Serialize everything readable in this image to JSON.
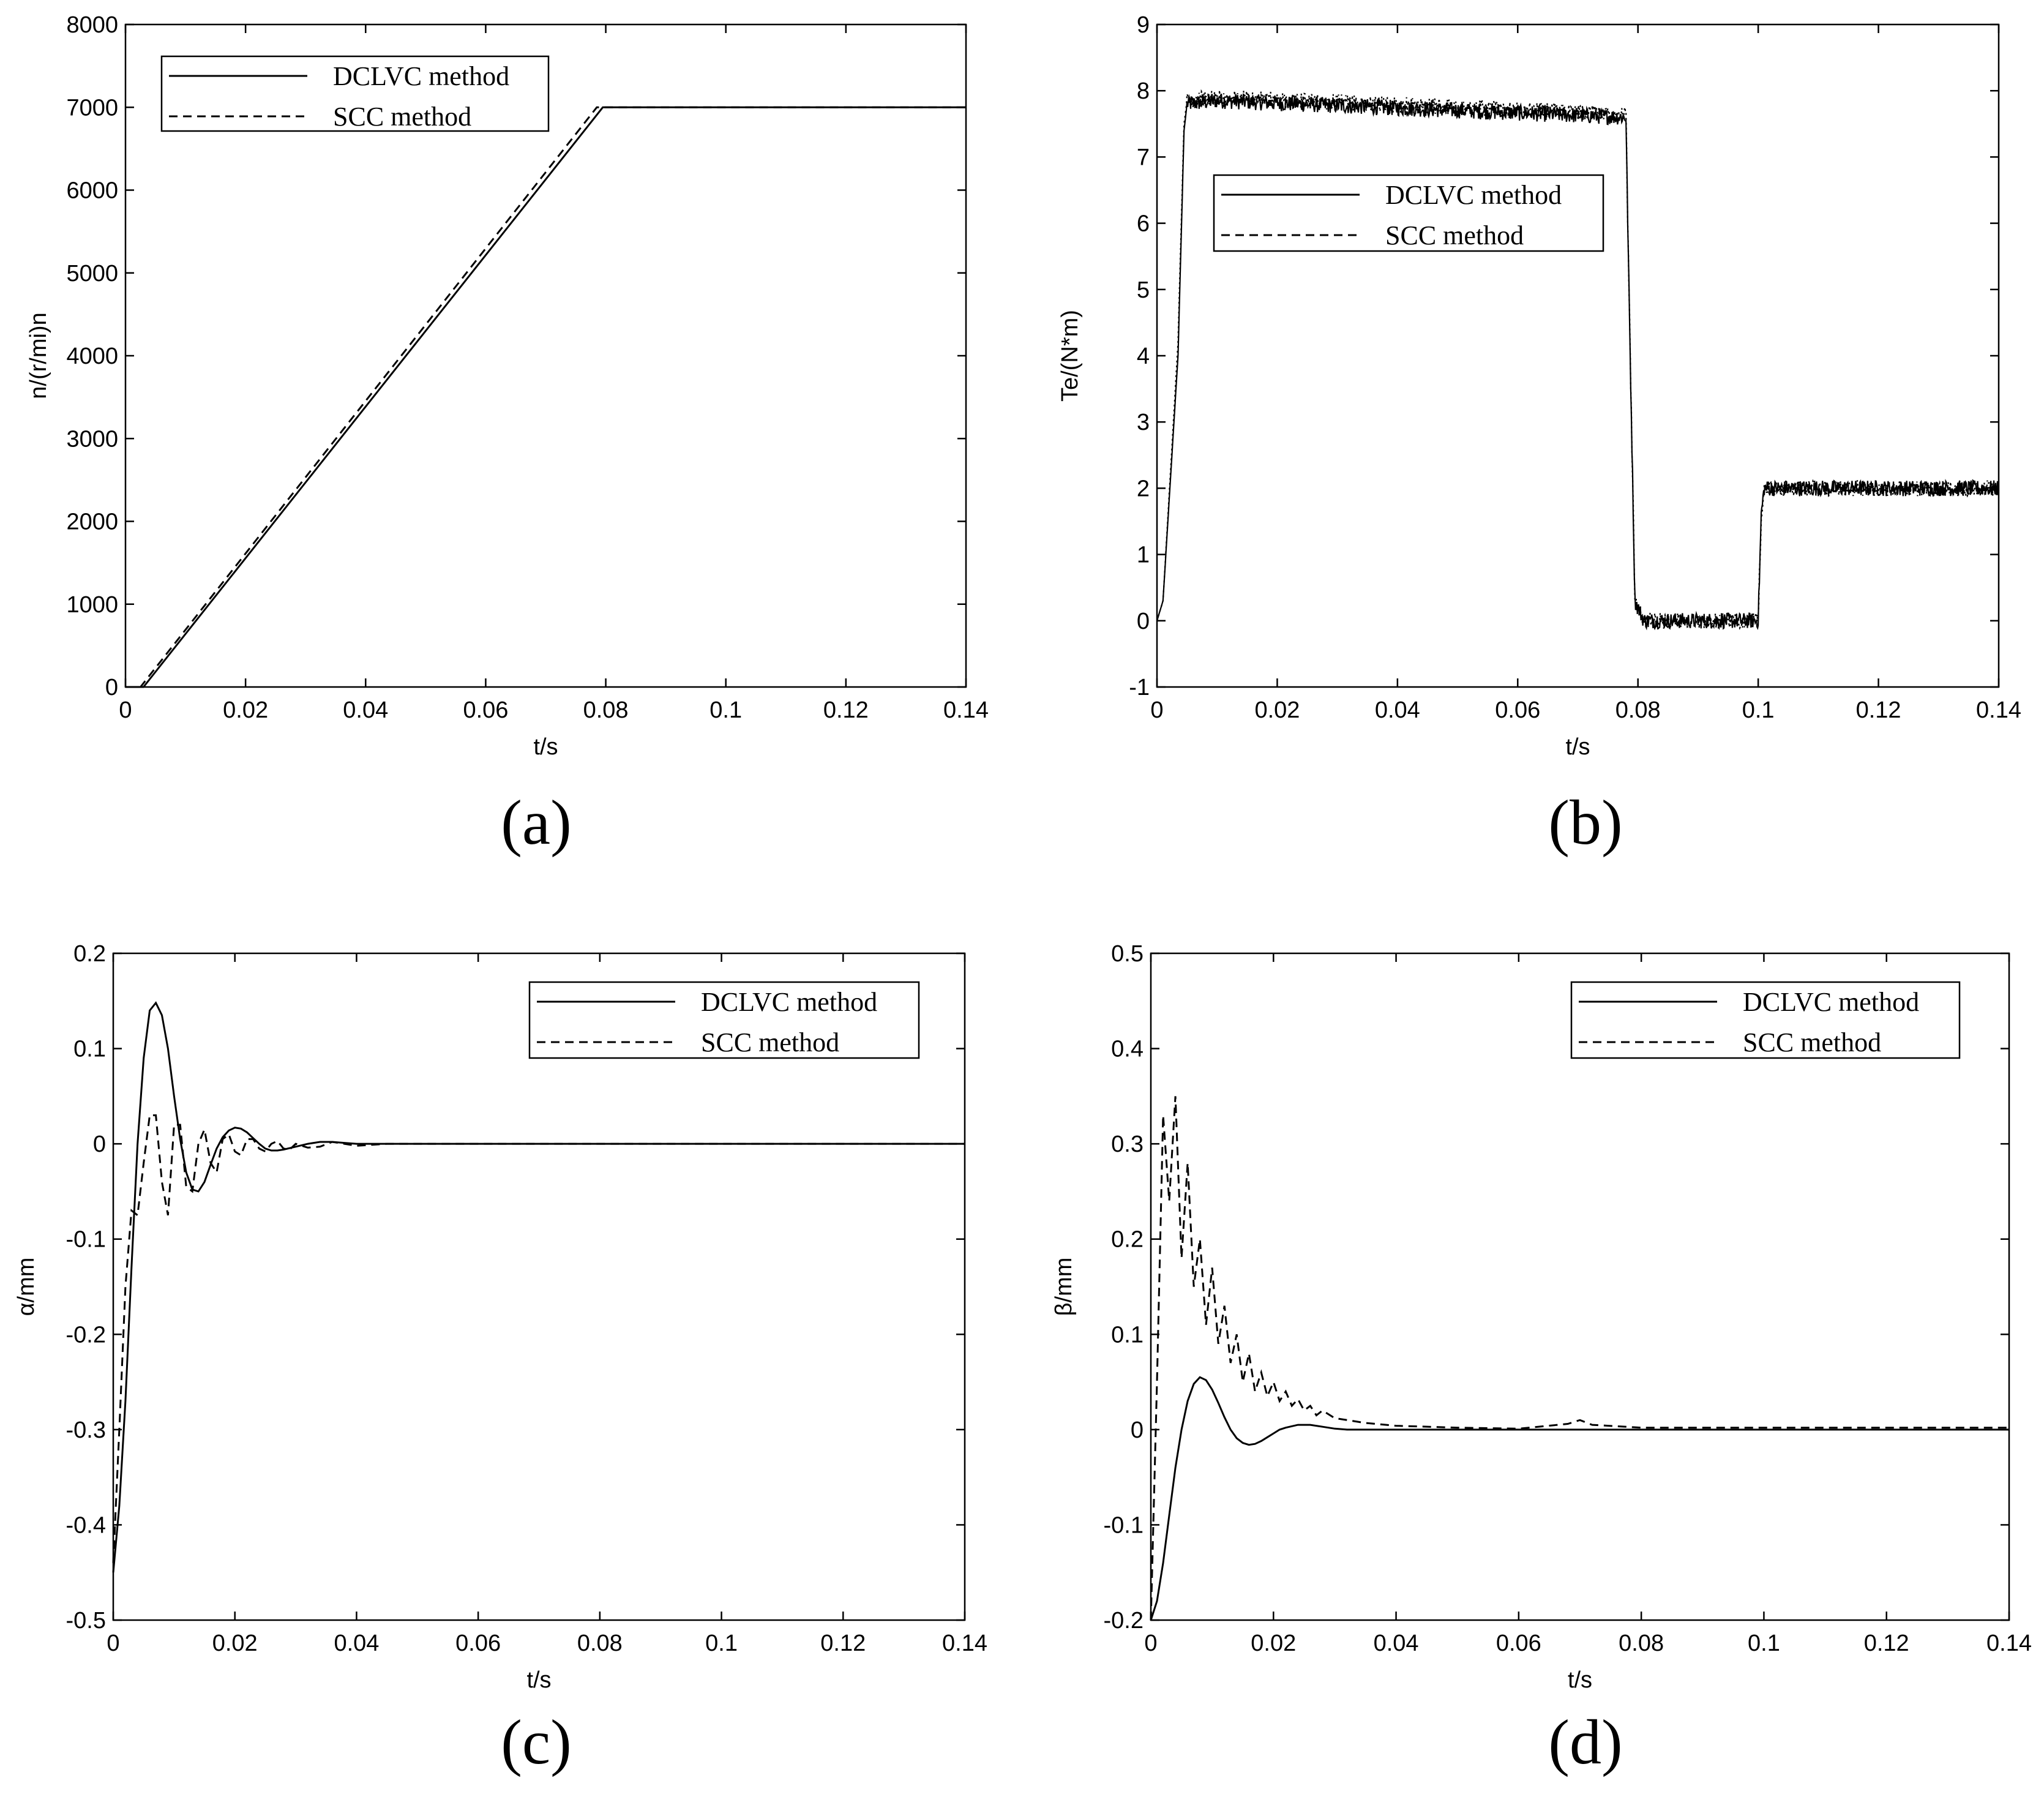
{
  "chart_data": [
    {
      "panel": "(a)",
      "type": "line",
      "xlabel": "t/s",
      "ylabel": "n/(r/mi)n",
      "xlim": [
        0,
        0.14
      ],
      "ylim": [
        0,
        8000
      ],
      "xticks": [
        0,
        0.02,
        0.04,
        0.06,
        0.08,
        0.1,
        0.12,
        0.14
      ],
      "xtick_labels": [
        "0",
        "0.02",
        "0.04",
        "0.06",
        "0.08",
        "0.1",
        "0.12",
        "0.14"
      ],
      "yticks": [
        0,
        1000,
        2000,
        3000,
        4000,
        5000,
        6000,
        7000,
        8000
      ],
      "ytick_labels": [
        "0",
        "1000",
        "2000",
        "3000",
        "4000",
        "5000",
        "6000",
        "7000",
        "8000"
      ],
      "legend_position": "top-left",
      "series": [
        {
          "name": "DCLVC method",
          "style": "solid",
          "x": [
            0,
            0.003,
            0.0795,
            0.14
          ],
          "y": [
            0,
            0,
            7000,
            7000
          ]
        },
        {
          "name": "SCC method",
          "style": "dashed",
          "x": [
            0,
            0.0025,
            0.0785,
            0.14
          ],
          "y": [
            0,
            0,
            7000,
            7000
          ]
        }
      ]
    },
    {
      "panel": "(b)",
      "type": "line",
      "xlabel": "t/s",
      "ylabel": "Te/(N*m)",
      "xlim": [
        0,
        0.14
      ],
      "ylim": [
        -1,
        9
      ],
      "xticks": [
        0,
        0.02,
        0.04,
        0.06,
        0.08,
        0.1,
        0.12,
        0.14
      ],
      "xtick_labels": [
        "0",
        "0.02",
        "0.04",
        "0.06",
        "0.08",
        "0.1",
        "0.12",
        "0.14"
      ],
      "yticks": [
        -1,
        0,
        1,
        2,
        3,
        4,
        5,
        6,
        7,
        8,
        9
      ],
      "ytick_labels": [
        "-1",
        "0",
        "1",
        "2",
        "3",
        "4",
        "5",
        "6",
        "7",
        "8",
        "9"
      ],
      "legend_position": "center-left",
      "noise_amplitude": 0.12,
      "series": [
        {
          "name": "DCLVC method",
          "style": "solid",
          "x": [
            0,
            0.001,
            0.0035,
            0.0045,
            0.005,
            0.01,
            0.078,
            0.0785,
            0.0795,
            0.081,
            0.1,
            0.1005,
            0.101,
            0.14
          ],
          "y": [
            0,
            0.3,
            4,
            7.4,
            7.8,
            7.85,
            7.6,
            5,
            0.3,
            0,
            0,
            1.6,
            2.0,
            2.0
          ]
        },
        {
          "name": "SCC method",
          "style": "dashed",
          "x": [
            0,
            0.001,
            0.0035,
            0.0045,
            0.005,
            0.01,
            0.078,
            0.0785,
            0.0795,
            0.081,
            0.1,
            0.1005,
            0.101,
            0.14
          ],
          "y": [
            0,
            0.3,
            4.2,
            7.5,
            7.85,
            7.9,
            7.65,
            5,
            0.3,
            0,
            0,
            1.6,
            2.0,
            2.0
          ]
        }
      ]
    },
    {
      "panel": "(c)",
      "type": "line",
      "xlabel": "t/s",
      "ylabel": "α/mm",
      "xlim": [
        0,
        0.14
      ],
      "ylim": [
        -0.5,
        0.2
      ],
      "xticks": [
        0,
        0.02,
        0.04,
        0.06,
        0.08,
        0.1,
        0.12,
        0.14
      ],
      "xtick_labels": [
        "0",
        "0.02",
        "0.04",
        "0.06",
        "0.08",
        "0.1",
        "0.12",
        "0.14"
      ],
      "yticks": [
        -0.5,
        -0.4,
        -0.3,
        -0.2,
        -0.1,
        0,
        0.1,
        0.2
      ],
      "ytick_labels": [
        "-0.5",
        "-0.4",
        "-0.3",
        "-0.2",
        "-0.1",
        "0",
        "0.1",
        "0.2"
      ],
      "legend_position": "top-right",
      "series": [
        {
          "name": "DCLVC method",
          "style": "solid",
          "x": [
            0,
            0.001,
            0.002,
            0.003,
            0.004,
            0.005,
            0.006,
            0.007,
            0.008,
            0.009,
            0.01,
            0.011,
            0.012,
            0.013,
            0.014,
            0.015,
            0.016,
            0.017,
            0.018,
            0.019,
            0.02,
            0.021,
            0.022,
            0.023,
            0.024,
            0.025,
            0.026,
            0.027,
            0.028,
            0.03,
            0.032,
            0.034,
            0.036,
            0.038,
            0.04,
            0.045,
            0.05,
            0.14
          ],
          "y": [
            -0.45,
            -0.38,
            -0.27,
            -0.13,
            0.0,
            0.09,
            0.14,
            0.148,
            0.135,
            0.1,
            0.05,
            0.005,
            -0.03,
            -0.048,
            -0.05,
            -0.04,
            -0.022,
            -0.005,
            0.007,
            0.014,
            0.017,
            0.016,
            0.012,
            0.006,
            0.0,
            -0.005,
            -0.007,
            -0.007,
            -0.006,
            -0.003,
            0.0,
            0.002,
            0.002,
            0.001,
            0.0,
            0.0,
            0.0,
            0.0
          ]
        },
        {
          "name": "SCC method",
          "style": "dashed",
          "x": [
            0,
            0.001,
            0.002,
            0.003,
            0.004,
            0.005,
            0.006,
            0.007,
            0.008,
            0.009,
            0.01,
            0.011,
            0.012,
            0.013,
            0.014,
            0.015,
            0.016,
            0.017,
            0.018,
            0.019,
            0.02,
            0.021,
            0.022,
            0.023,
            0.024,
            0.025,
            0.026,
            0.027,
            0.028,
            0.029,
            0.03,
            0.032,
            0.034,
            0.036,
            0.038,
            0.04,
            0.045,
            0.05,
            0.14
          ],
          "y": [
            -0.44,
            -0.3,
            -0.15,
            -0.07,
            -0.075,
            -0.02,
            0.03,
            0.03,
            -0.04,
            -0.075,
            0.02,
            0.02,
            -0.045,
            -0.05,
            0.0,
            0.015,
            -0.02,
            -0.03,
            0.005,
            0.01,
            -0.008,
            -0.012,
            0.005,
            0.005,
            -0.005,
            -0.008,
            0.0,
            0.003,
            -0.005,
            -0.006,
            0.0,
            -0.004,
            -0.003,
            0.002,
            0.0,
            -0.002,
            0.0,
            0.0,
            0.0
          ]
        }
      ]
    },
    {
      "panel": "(d)",
      "type": "line",
      "xlabel": "t/s",
      "ylabel": "β/mm",
      "xlim": [
        0,
        0.14
      ],
      "ylim": [
        -0.2,
        0.5
      ],
      "xticks": [
        0,
        0.02,
        0.04,
        0.06,
        0.08,
        0.1,
        0.12,
        0.14
      ],
      "xtick_labels": [
        "0",
        "0.02",
        "0.04",
        "0.06",
        "0.08",
        "0.1",
        "0.12",
        "0.14"
      ],
      "yticks": [
        -0.2,
        -0.1,
        0,
        0.1,
        0.2,
        0.3,
        0.4,
        0.5
      ],
      "ytick_labels": [
        "-0.2",
        "-0.1",
        "0",
        "0.1",
        "0.2",
        "0.3",
        "0.4",
        "0.5"
      ],
      "legend_position": "top-right",
      "series": [
        {
          "name": "DCLVC method",
          "style": "solid",
          "x": [
            0,
            0.001,
            0.002,
            0.003,
            0.004,
            0.005,
            0.006,
            0.007,
            0.008,
            0.009,
            0.01,
            0.011,
            0.012,
            0.013,
            0.014,
            0.015,
            0.016,
            0.017,
            0.018,
            0.019,
            0.02,
            0.021,
            0.022,
            0.024,
            0.026,
            0.028,
            0.03,
            0.032,
            0.035,
            0.04,
            0.14
          ],
          "y": [
            -0.2,
            -0.18,
            -0.14,
            -0.09,
            -0.04,
            0.0,
            0.03,
            0.048,
            0.055,
            0.052,
            0.042,
            0.028,
            0.013,
            0.0,
            -0.009,
            -0.014,
            -0.016,
            -0.015,
            -0.012,
            -0.008,
            -0.004,
            0.0,
            0.002,
            0.005,
            0.005,
            0.003,
            0.001,
            0.0,
            0.0,
            0.0,
            0.0
          ]
        },
        {
          "name": "SCC method",
          "style": "dashed",
          "x": [
            0,
            0.001,
            0.002,
            0.003,
            0.004,
            0.005,
            0.006,
            0.007,
            0.008,
            0.009,
            0.01,
            0.011,
            0.012,
            0.013,
            0.014,
            0.015,
            0.016,
            0.017,
            0.018,
            0.019,
            0.02,
            0.021,
            0.022,
            0.023,
            0.024,
            0.025,
            0.026,
            0.027,
            0.028,
            0.03,
            0.032,
            0.035,
            0.04,
            0.05,
            0.06,
            0.068,
            0.07,
            0.072,
            0.08,
            0.14
          ],
          "y": [
            -0.2,
            0.05,
            0.33,
            0.24,
            0.35,
            0.18,
            0.28,
            0.15,
            0.2,
            0.11,
            0.17,
            0.09,
            0.13,
            0.07,
            0.1,
            0.05,
            0.08,
            0.04,
            0.06,
            0.035,
            0.05,
            0.03,
            0.04,
            0.025,
            0.032,
            0.02,
            0.025,
            0.015,
            0.02,
            0.012,
            0.01,
            0.007,
            0.004,
            0.002,
            0.001,
            0.006,
            0.01,
            0.005,
            0.002,
            0.002
          ]
        }
      ]
    }
  ],
  "captions": [
    "(a)",
    "(b)",
    "(c)",
    "(d)"
  ]
}
